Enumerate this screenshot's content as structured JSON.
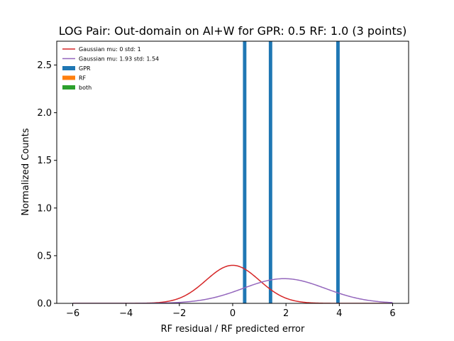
{
  "chart_data": {
    "type": "bar",
    "title": "LOG Pair: Out-domain on Al+W for GPR: 0.5 RF: 1.0 (3 points)",
    "xlabel": "RF residual / RF predicted error",
    "ylabel": "Normalized Counts",
    "xlim": [
      -6.6,
      6.6
    ],
    "ylim": [
      0,
      2.75
    ],
    "xticks": [
      -6,
      -4,
      -2,
      0,
      2,
      4,
      6
    ],
    "xtick_labels": [
      "−6",
      "−4",
      "−2",
      "0",
      "2",
      "4",
      "6"
    ],
    "yticks": [
      0,
      0.5,
      1.0,
      1.5,
      2.0,
      2.5
    ],
    "ytick_labels": [
      "0.0",
      "0.5",
      "1.0",
      "1.5",
      "2.0",
      "2.5"
    ],
    "grid": false,
    "legend_position": "top-left",
    "lines": [
      {
        "name": "Gaussian mu: 0 std: 1",
        "mu": 0,
        "std": 1,
        "x_range": [
          -6,
          6
        ],
        "color": "#d62728"
      },
      {
        "name": "Gaussian mu: 1.93 std: 1.54",
        "mu": 1.93,
        "std": 1.54,
        "x_range": [
          -6,
          6
        ],
        "color": "#9467bd"
      }
    ],
    "bars": [
      {
        "name": "GPR",
        "color": "#1f77b4",
        "x": [
          0.45,
          1.42,
          3.95
        ],
        "heights": [
          2.75,
          2.75,
          2.75
        ],
        "width": 0.13
      }
    ],
    "legend": [
      {
        "label": "Gaussian mu: 0 std: 1",
        "kind": "line",
        "color": "#d62728"
      },
      {
        "label": "Gaussian mu: 1.93 std: 1.54",
        "kind": "line",
        "color": "#9467bd"
      },
      {
        "label": "GPR",
        "kind": "patch",
        "color": "#1f77b4"
      },
      {
        "label": "RF",
        "kind": "patch",
        "color": "#ff7f0e"
      },
      {
        "label": "both",
        "kind": "patch",
        "color": "#2ca02c"
      }
    ]
  }
}
